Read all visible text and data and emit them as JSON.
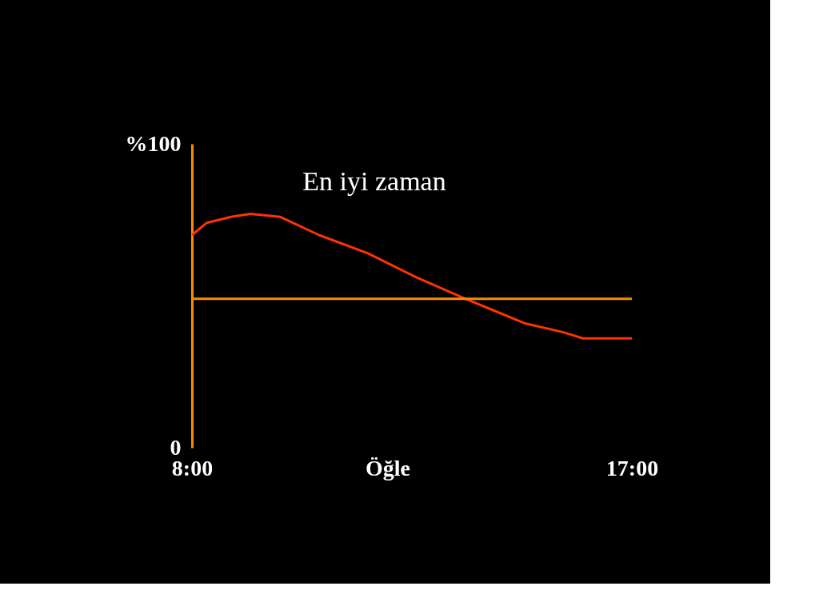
{
  "chart_data": {
    "type": "line",
    "x": [
      8.0,
      8.3,
      8.8,
      9.2,
      9.8,
      10.6,
      11.6,
      12.6,
      13.6,
      14.2,
      14.8,
      15.6,
      16.0,
      17.0
    ],
    "series": [
      {
        "color": "#ff3300",
        "values": [
          70,
          74,
          76,
          77,
          76,
          70,
          64,
          56,
          49,
          45,
          41,
          38,
          36,
          36
        ]
      }
    ],
    "xlim": [
      8,
      17
    ],
    "xticks": [
      {
        "value": 8,
        "label": "8:00"
      },
      {
        "value": 12,
        "label": "Öğle"
      },
      {
        "value": 17,
        "label": "17:00"
      }
    ],
    "ylim": [
      0,
      100
    ],
    "yticks": [
      0,
      {
        "value": 100,
        "label": "%100"
      }
    ],
    "ref_lines": [
      {
        "axis": "y",
        "value": 49,
        "label": null,
        "color": "#ff8c00"
      }
    ],
    "annotations": [
      "En iyi zaman"
    ],
    "grid": false,
    "legend": false,
    "marker": "none",
    "line_style": "solid"
  }
}
